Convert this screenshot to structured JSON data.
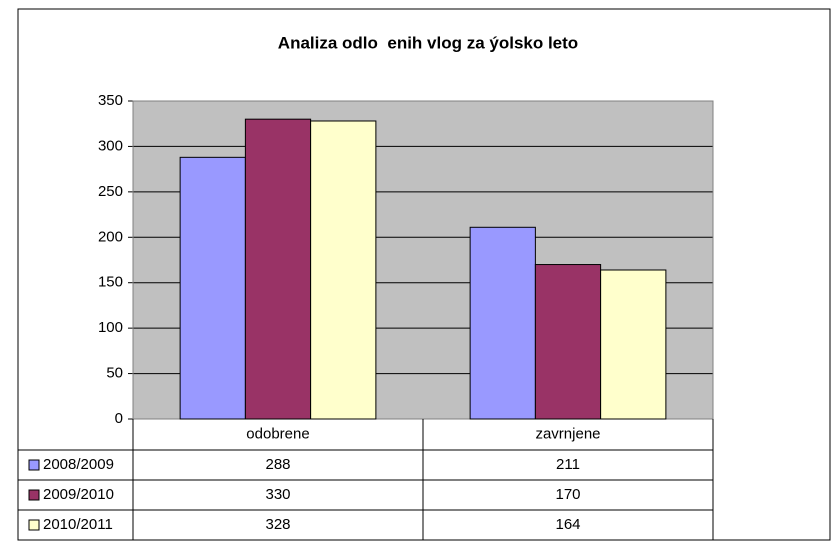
{
  "chart_data": {
    "type": "bar",
    "title": "Analiza odlo  enih vlog za ýolsko leto",
    "categories": [
      "odobrene",
      "zavrnjene"
    ],
    "series": [
      {
        "name": "2008/2009",
        "color": "#9999ff",
        "values": [
          288,
          211
        ]
      },
      {
        "name": "2009/2010",
        "color": "#993366",
        "values": [
          330,
          170
        ]
      },
      {
        "name": "2010/2011",
        "color": "#ffffcc",
        "values": [
          328,
          164
        ]
      }
    ],
    "ylim": [
      0,
      350
    ],
    "yticks": [
      0,
      50,
      100,
      150,
      200,
      250,
      300,
      350
    ],
    "grid": true
  }
}
